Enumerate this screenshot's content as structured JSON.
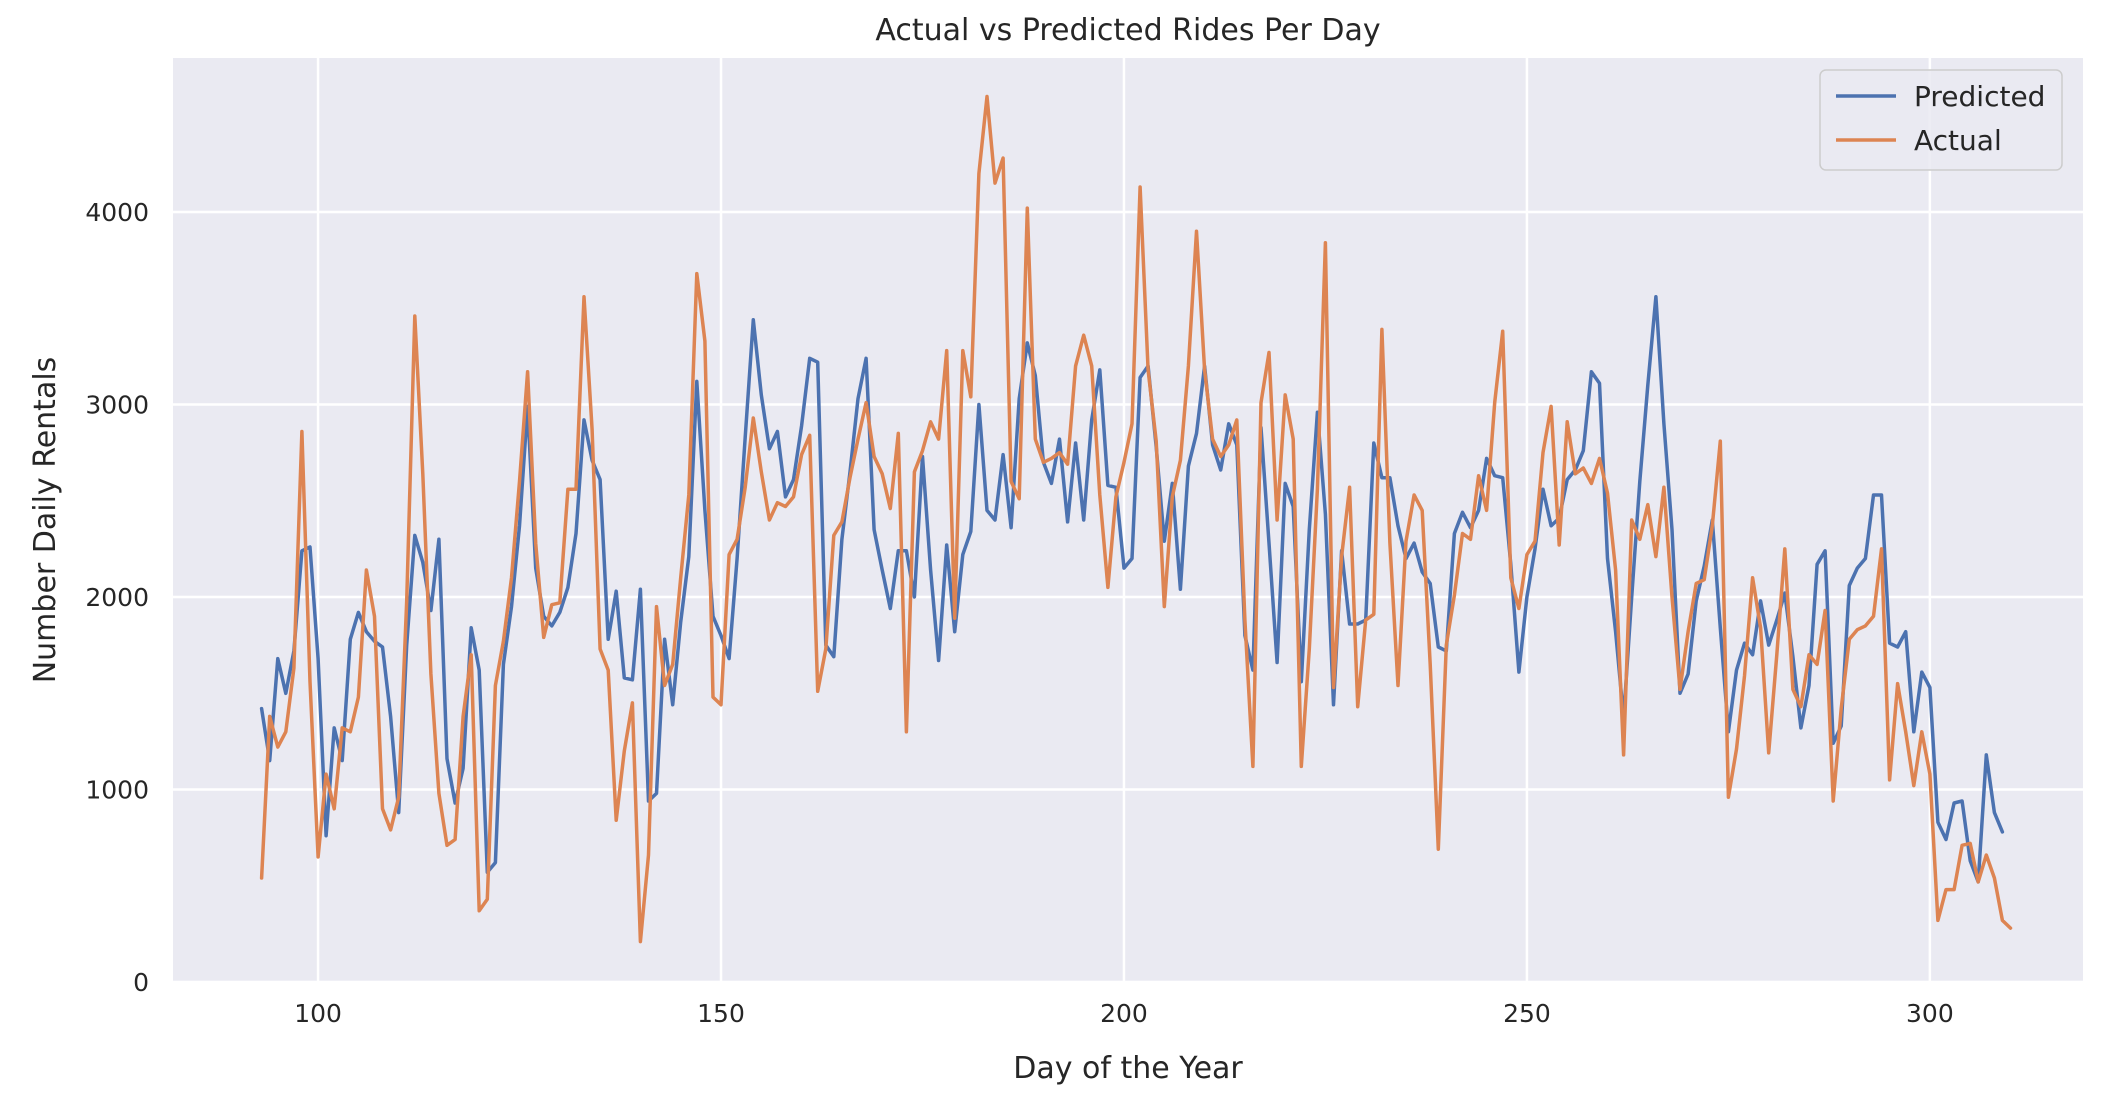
{
  "chart_data": {
    "type": "line",
    "title": "Actual vs Predicted Rides Per Day",
    "xlabel": "Day of the Year",
    "ylabel": "Number Daily Rentals",
    "xlim": [
      82,
      319
    ],
    "ylim": [
      0,
      4800
    ],
    "xticks": [
      100,
      150,
      200,
      250,
      300
    ],
    "yticks": [
      0,
      1000,
      2000,
      3000,
      4000
    ],
    "grid": true,
    "legend_position": "top-right",
    "colors": {
      "background": "#eaeaf2",
      "grid": "#ffffff",
      "predicted": "#4c72b0",
      "actual": "#dd8452"
    },
    "x_start": 93,
    "series": [
      {
        "name": "Predicted",
        "color": "#4c72b0",
        "values": [
          1420,
          1150,
          1680,
          1500,
          1720,
          2240,
          2260,
          1680,
          760,
          1320,
          1150,
          1780,
          1920,
          1820,
          1770,
          1740,
          1380,
          880,
          1750,
          2320,
          2180,
          1930,
          2300,
          1160,
          930,
          1110,
          1840,
          1620,
          570,
          620,
          1650,
          1950,
          2370,
          2990,
          2150,
          1900,
          1850,
          1920,
          2050,
          2330,
          2920,
          2710,
          2610,
          1780,
          2030,
          1580,
          1570,
          2040,
          940,
          980,
          1780,
          1440,
          1870,
          2210,
          3120,
          2450,
          1900,
          1800,
          1680,
          2200,
          2830,
          3440,
          3050,
          2770,
          2860,
          2520,
          2610,
          2890,
          3240,
          3220,
          1750,
          1690,
          2300,
          2650,
          3030,
          3240,
          2350,
          2140,
          1940,
          2240,
          2240,
          2000,
          2730,
          2140,
          1670,
          2270,
          1820,
          2220,
          2340,
          3000,
          2450,
          2400,
          2740,
          2360,
          3030,
          3320,
          3150,
          2700,
          2590,
          2820,
          2390,
          2800,
          2400,
          2920,
          3180,
          2580,
          2570,
          2150,
          2200,
          3140,
          3200,
          2780,
          2290,
          2590,
          2040,
          2680,
          2850,
          3200,
          2790,
          2660,
          2900,
          2790,
          1800,
          1620,
          2880,
          2280,
          1660,
          2590,
          2470,
          1560,
          2350,
          2960,
          2430,
          1440,
          2240,
          1860,
          1860,
          1880,
          2800,
          2620,
          2620,
          2370,
          2200,
          2280,
          2130,
          2070,
          1740,
          1720,
          2330,
          2440,
          2360,
          2450,
          2720,
          2630,
          2620,
          2170,
          1610,
          2000,
          2250,
          2560,
          2370,
          2410,
          2610,
          2660,
          2760,
          3170,
          3110,
          2200,
          1820,
          1370,
          2000,
          2600,
          3100,
          3560,
          2900,
          2350,
          1500,
          1600,
          1980,
          2160,
          2400,
          1840,
          1300,
          1620,
          1760,
          1700,
          1980,
          1750,
          1880,
          2020,
          1690,
          1320,
          1540,
          2170,
          2240,
          1240,
          1330,
          2060,
          2150,
          2200,
          2530,
          2530,
          1760,
          1740,
          1820,
          1300,
          1610,
          1530,
          830,
          740,
          930,
          940,
          630,
          520,
          1180,
          880,
          780
        ]
      },
      {
        "name": "Actual",
        "color": "#dd8452",
        "values": [
          540,
          1380,
          1220,
          1300,
          1630,
          2860,
          1560,
          650,
          1080,
          900,
          1320,
          1300,
          1480,
          2140,
          1900,
          900,
          790,
          960,
          1980,
          3460,
          2640,
          1600,
          980,
          710,
          740,
          1380,
          1700,
          370,
          430,
          1540,
          1770,
          2100,
          2600,
          3170,
          2280,
          1790,
          1960,
          1970,
          2560,
          2560,
          3560,
          2870,
          1730,
          1620,
          840,
          1200,
          1450,
          210,
          660,
          1950,
          1540,
          1650,
          2100,
          2530,
          3680,
          3330,
          1480,
          1440,
          2220,
          2300,
          2570,
          2930,
          2650,
          2400,
          2490,
          2470,
          2520,
          2740,
          2840,
          1510,
          1730,
          2320,
          2390,
          2620,
          2820,
          3010,
          2730,
          2640,
          2460,
          2850,
          1300,
          2650,
          2760,
          2910,
          2820,
          3280,
          1890,
          3280,
          3040,
          4200,
          4600,
          4150,
          4280,
          2600,
          2510,
          4020,
          2820,
          2700,
          2720,
          2750,
          2690,
          3200,
          3360,
          3200,
          2530,
          2050,
          2520,
          2700,
          2900,
          4130,
          3180,
          2810,
          1950,
          2520,
          2710,
          3200,
          3900,
          3180,
          2820,
          2730,
          2790,
          2920,
          1880,
          1120,
          3010,
          3270,
          2400,
          3050,
          2820,
          1120,
          1730,
          2560,
          3840,
          1530,
          2210,
          2570,
          1430,
          1880,
          1910,
          3390,
          2280,
          1540,
          2290,
          2530,
          2450,
          1650,
          690,
          1750,
          2010,
          2330,
          2300,
          2630,
          2450,
          3010,
          3380,
          2100,
          1940,
          2220,
          2290,
          2750,
          2990,
          2270,
          2910,
          2640,
          2670,
          2590,
          2720,
          2540,
          2140,
          1180,
          2400,
          2300,
          2480,
          2210,
          2570,
          2000,
          1520,
          1820,
          2070,
          2090,
          2370,
          2810,
          960,
          1210,
          1590,
          2100,
          1840,
          1190,
          1700,
          2250,
          1520,
          1430,
          1700,
          1650,
          1930,
          940,
          1420,
          1780,
          1830,
          1850,
          1900,
          2250,
          1050,
          1550,
          1300,
          1020,
          1300,
          1080,
          320,
          480,
          480,
          710,
          720,
          520,
          660,
          540,
          320,
          280
        ]
      }
    ]
  }
}
